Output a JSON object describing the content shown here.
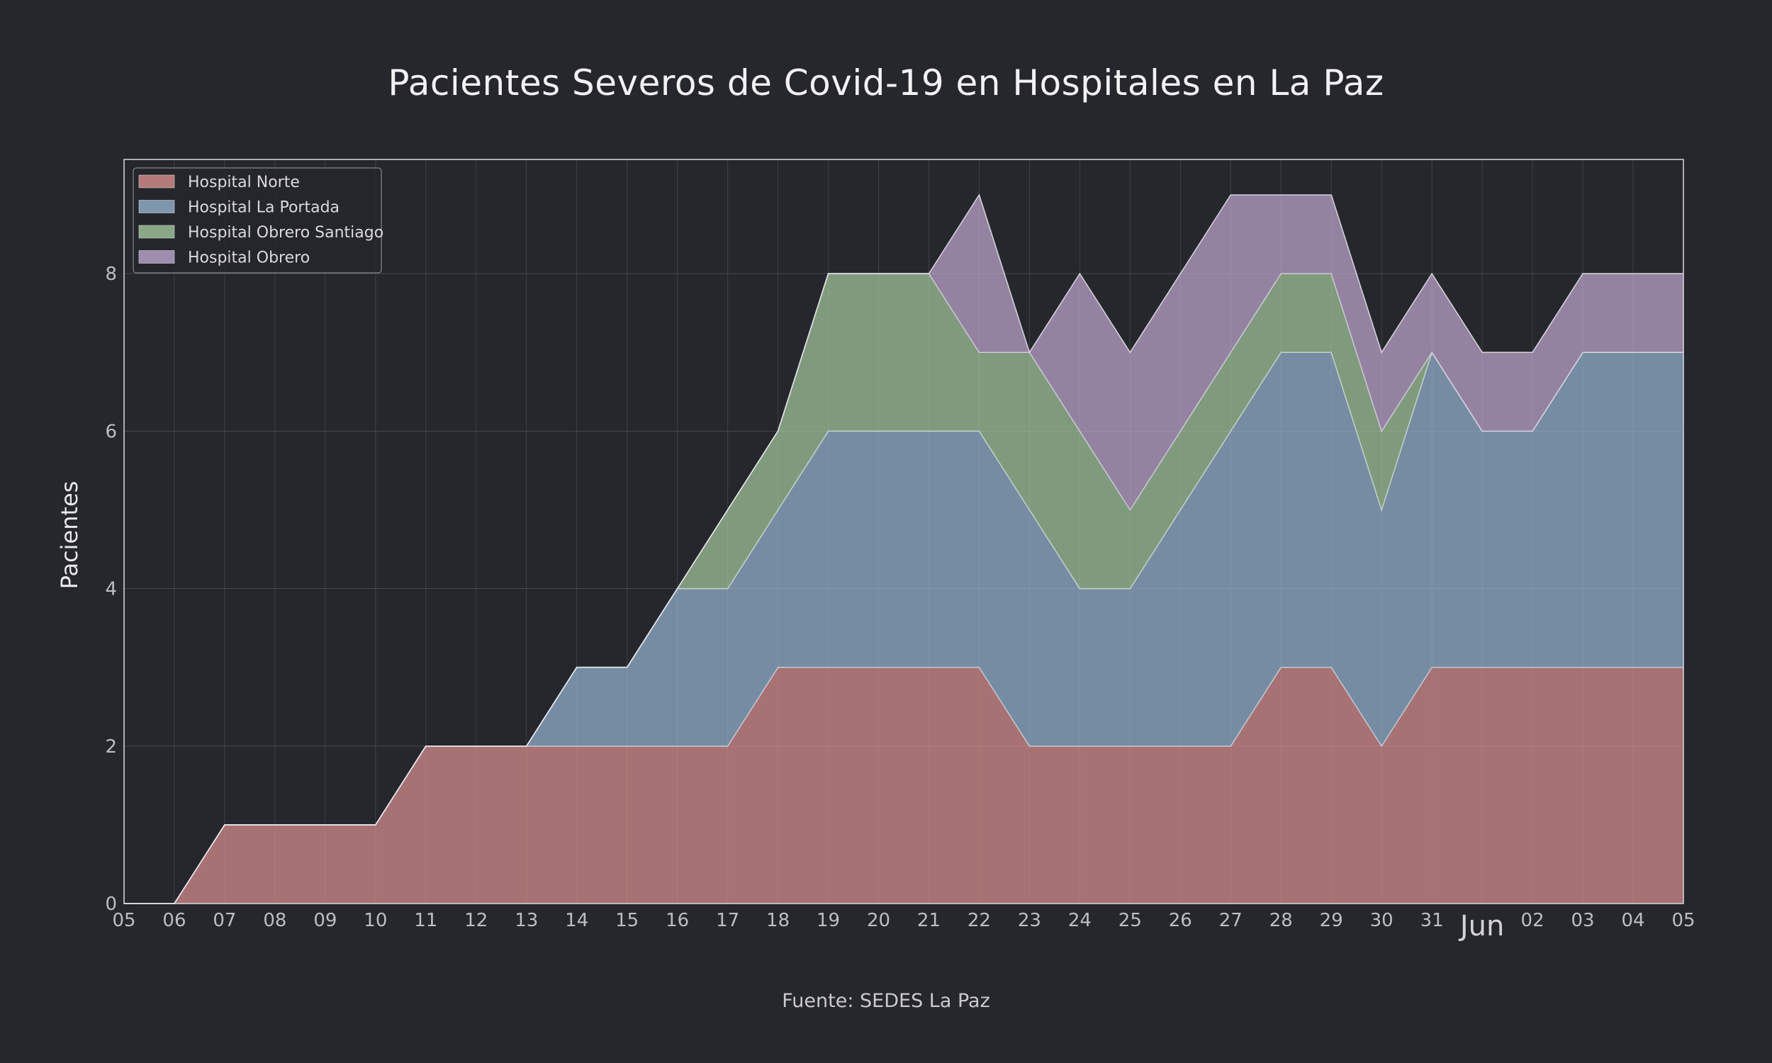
{
  "chart_data": {
    "type": "area",
    "stacked": true,
    "title": "Pacientes Severos de Covid-19 en Hospitales en La Paz",
    "ylabel": "Pacientes",
    "xlabel": "",
    "source": "Fuente: SEDES La Paz",
    "x_tick_labels": [
      "05",
      "06",
      "07",
      "08",
      "09",
      "10",
      "11",
      "12",
      "13",
      "14",
      "15",
      "16",
      "17",
      "18",
      "19",
      "20",
      "21",
      "22",
      "23",
      "24",
      "25",
      "26",
      "27",
      "28",
      "29",
      "30",
      "31",
      "Jun",
      "02",
      "03",
      "04",
      "05"
    ],
    "x_month_label_index": 27,
    "ylim": [
      0,
      9.45
    ],
    "yticks": [
      0,
      2,
      4,
      6,
      8
    ],
    "grid": true,
    "legend_position": "top-left",
    "series": [
      {
        "name": "Hospital Norte",
        "color": "#d8908f",
        "values": [
          0,
          0,
          1,
          1,
          1,
          1,
          2,
          2,
          2,
          2,
          2,
          2,
          2,
          3,
          3,
          3,
          3,
          3,
          2,
          2,
          2,
          2,
          2,
          3,
          3,
          2,
          3,
          3,
          3,
          3,
          3,
          3
        ]
      },
      {
        "name": "Hospital La Portada",
        "color": "#96b4d0",
        "values": [
          0,
          0,
          0,
          0,
          0,
          0,
          0,
          0,
          0,
          1,
          1,
          2,
          2,
          2,
          3,
          3,
          3,
          3,
          3,
          2,
          2,
          3,
          4,
          4,
          4,
          3,
          4,
          3,
          3,
          4,
          4,
          4
        ]
      },
      {
        "name": "Hospital Obrero Santiago",
        "color": "#a3c89d",
        "values": [
          0,
          0,
          0,
          0,
          0,
          0,
          0,
          0,
          0,
          0,
          0,
          0,
          1,
          1,
          2,
          2,
          2,
          1,
          2,
          2,
          1,
          1,
          1,
          1,
          1,
          1,
          0,
          0,
          0,
          0,
          0,
          0
        ]
      },
      {
        "name": "Hospital Obrero",
        "color": "#bea7cf",
        "values": [
          0,
          0,
          0,
          0,
          0,
          0,
          0,
          0,
          0,
          0,
          0,
          0,
          0,
          0,
          0,
          0,
          0,
          2,
          0,
          2,
          2,
          2,
          2,
          1,
          1,
          1,
          1,
          1,
          1,
          1,
          1,
          1
        ]
      }
    ]
  }
}
